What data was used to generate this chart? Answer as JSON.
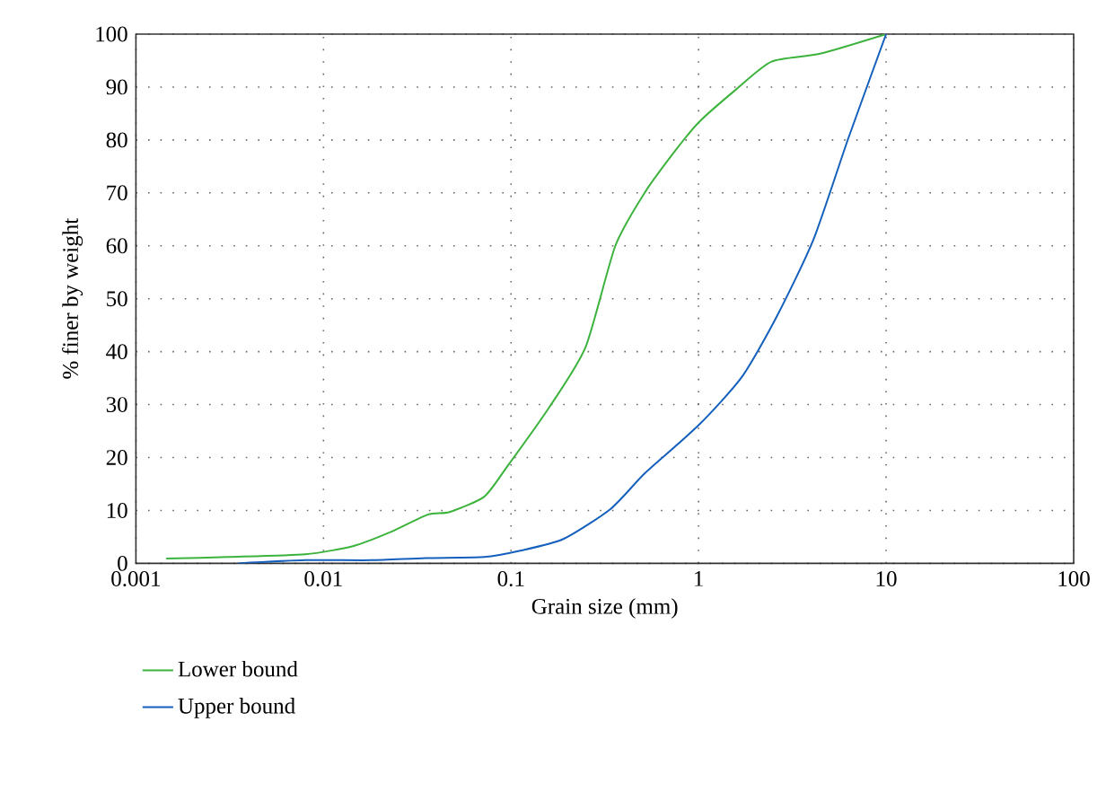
{
  "chart_data": {
    "type": "line",
    "xlabel": "Grain size (mm)",
    "ylabel": "% finer by weight",
    "series": [
      {
        "name": "Lower bound",
        "color": "#3cb33c",
        "x": [
          0.00145,
          0.0031,
          0.008,
          0.0145,
          0.0224,
          0.036,
          0.047,
          0.072,
          0.095,
          0.16,
          0.25,
          0.36,
          0.52,
          0.76,
          1,
          1.58,
          2.45,
          4.45,
          10
        ],
        "values": [
          0.9,
          1.2,
          1.7,
          3.3,
          5.8,
          9.2,
          9.7,
          12.6,
          18.2,
          29.5,
          40.9,
          60,
          70.2,
          78.2,
          83.3,
          89.5,
          94.8,
          96.3,
          100
        ]
      },
      {
        "name": "Upper bound",
        "color": "#1560bd",
        "x": [
          0.0035,
          0.008,
          0.018,
          0.035,
          0.072,
          0.112,
          0.19,
          0.34,
          0.52,
          1,
          1.7,
          2.6,
          4.1,
          6.3,
          10
        ],
        "values": [
          0,
          0.6,
          0.6,
          1.0,
          1.2,
          2.4,
          4.6,
          10.3,
          17.1,
          26.1,
          35.2,
          46.5,
          61.2,
          80.4,
          100
        ]
      }
    ],
    "log": "x",
    "xlim": [
      0.001,
      100
    ],
    "xticks": [
      0.001,
      0.01,
      0.1,
      1,
      10,
      100
    ],
    "ylim": [
      0,
      100
    ],
    "yticks": [
      0,
      10,
      20,
      30,
      40,
      50,
      60,
      70,
      80,
      90,
      100
    ],
    "grid": true,
    "legend": "bottom left",
    "marker": "none",
    "line_style": "solid"
  }
}
